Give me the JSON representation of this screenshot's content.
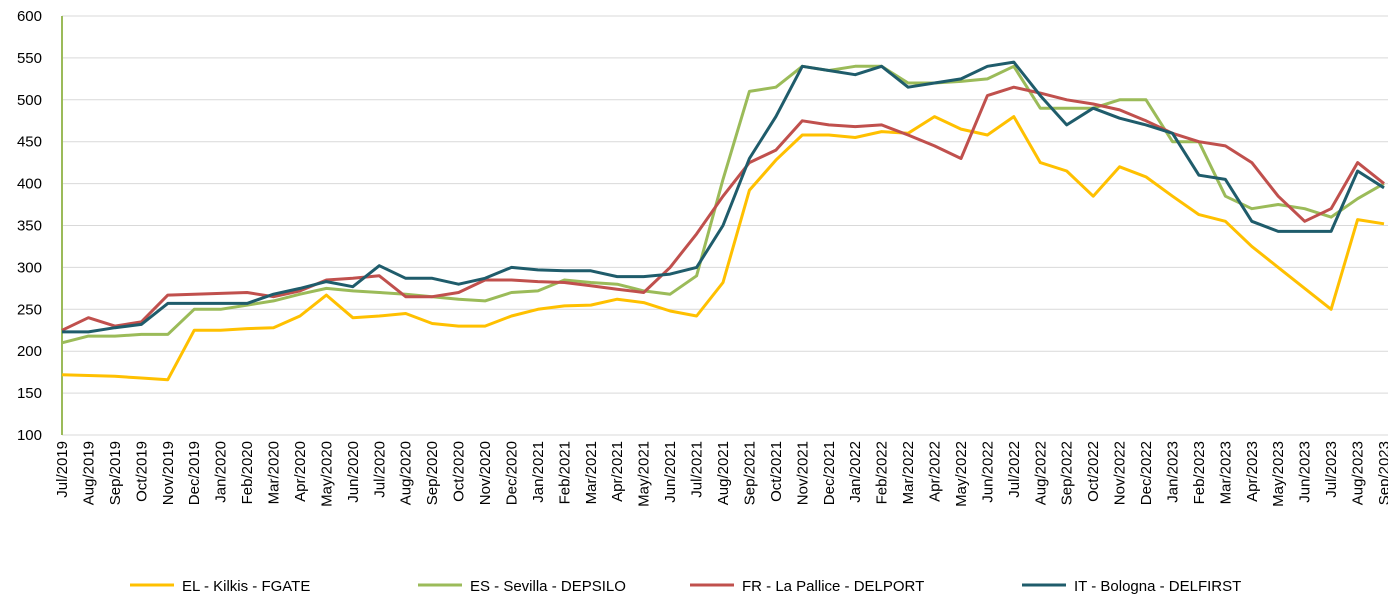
{
  "chart_data": {
    "type": "line",
    "categories": [
      "Jul/2019",
      "Aug/2019",
      "Sep/2019",
      "Oct/2019",
      "Nov/2019",
      "Dec/2019",
      "Jan/2020",
      "Feb/2020",
      "Mar/2020",
      "Apr/2020",
      "May/2020",
      "Jun/2020",
      "Jul/2020",
      "Aug/2020",
      "Sep/2020",
      "Oct/2020",
      "Nov/2020",
      "Dec/2020",
      "Jan/2021",
      "Feb/2021",
      "Mar/2021",
      "Apr/2021",
      "May/2021",
      "Jun/2021",
      "Jul/2021",
      "Aug/2021",
      "Sep/2021",
      "Oct/2021",
      "Nov/2021",
      "Dec/2021",
      "Jan/2022",
      "Feb/2022",
      "Mar/2022",
      "Apr/2022",
      "May/2022",
      "Jun/2022",
      "Jul/2022",
      "Aug/2022",
      "Sep/2022",
      "Oct/2022",
      "Nov/2022",
      "Dec/2022",
      "Jan/2023",
      "Feb/2023",
      "Mar/2023",
      "Apr/2023",
      "May/2023",
      "Jun/2023",
      "Jul/2023",
      "Aug/2023",
      "Sep/2023"
    ],
    "series": [
      {
        "name": "EL - Kilkis - FGATE",
        "color": "#ffc000",
        "values": [
          172,
          171,
          170,
          168,
          166,
          225,
          225,
          227,
          228,
          242,
          267,
          240,
          242,
          245,
          233,
          230,
          230,
          242,
          250,
          254,
          255,
          262,
          258,
          248,
          242,
          282,
          392,
          428,
          458,
          458,
          455,
          462,
          460,
          480,
          465,
          458,
          480,
          425,
          415,
          385,
          420,
          408,
          385,
          363,
          355,
          325,
          300,
          275,
          250,
          357,
          352
        ]
      },
      {
        "name": "ES - Sevilla - DEPSILO",
        "color": "#9bbb59",
        "values": [
          210,
          218,
          218,
          220,
          220,
          250,
          250,
          255,
          260,
          268,
          275,
          272,
          270,
          268,
          265,
          262,
          260,
          270,
          272,
          285,
          282,
          280,
          272,
          268,
          290,
          405,
          510,
          515,
          540,
          535,
          540,
          540,
          520,
          520,
          522,
          525,
          540,
          490,
          490,
          490,
          500,
          500,
          450,
          450,
          385,
          370,
          375,
          370,
          360,
          382,
          400
        ]
      },
      {
        "name": "FR - La Pallice - DELPORT",
        "color": "#c0504d",
        "values": [
          225,
          240,
          230,
          235,
          267,
          268,
          269,
          270,
          265,
          272,
          285,
          287,
          290,
          265,
          265,
          270,
          285,
          285,
          283,
          282,
          278,
          274,
          270,
          300,
          340,
          385,
          425,
          440,
          475,
          470,
          468,
          470,
          458,
          445,
          430,
          505,
          515,
          508,
          500,
          495,
          488,
          475,
          460,
          450,
          445,
          425,
          385,
          355,
          370,
          425,
          400
        ]
      },
      {
        "name": "IT - Bologna - DELFIRST",
        "color": "#1f5c6b",
        "values": [
          223,
          223,
          228,
          232,
          257,
          257,
          257,
          257,
          268,
          275,
          283,
          277,
          302,
          287,
          287,
          280,
          287,
          300,
          297,
          296,
          296,
          289,
          289,
          292,
          300,
          350,
          430,
          480,
          540,
          535,
          530,
          540,
          515,
          520,
          525,
          540,
          545,
          505,
          470,
          490,
          478,
          470,
          460,
          410,
          405,
          355,
          343,
          343,
          343,
          415,
          395
        ]
      }
    ],
    "ylim": [
      100,
      600
    ],
    "yticks": [
      100,
      150,
      200,
      250,
      300,
      350,
      400,
      450,
      500,
      550,
      600
    ],
    "grid": true
  }
}
